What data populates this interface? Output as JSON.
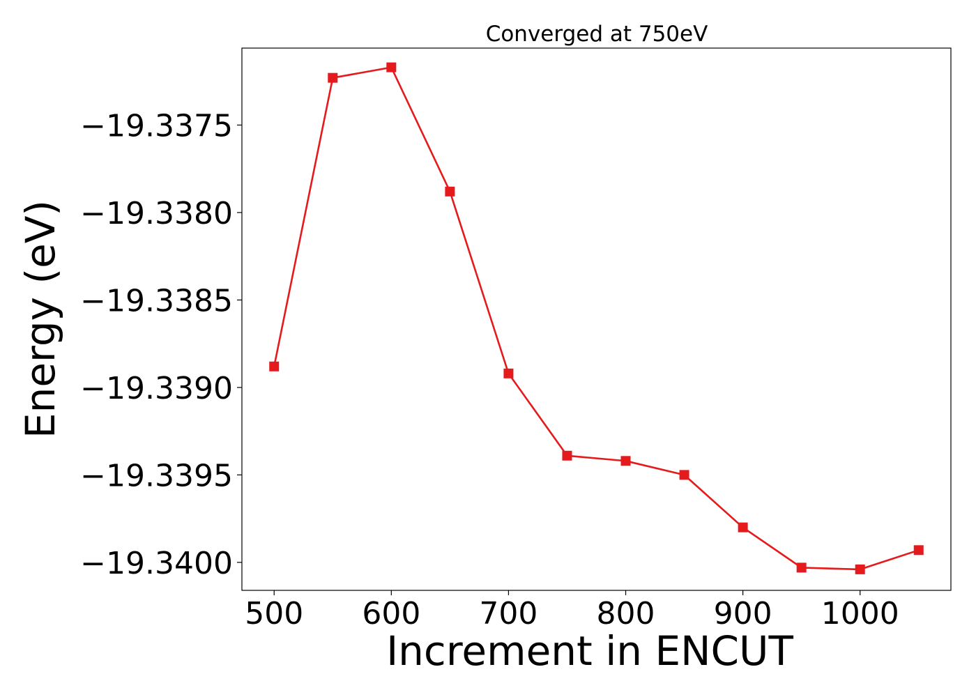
{
  "chart_data": {
    "type": "line",
    "title": "Converged at 750eV",
    "xlabel": "Increment in ENCUT",
    "ylabel": "Energy (eV)",
    "xlim": [
      472.5,
      1077.5
    ],
    "ylim": [
      -19.34016,
      -19.33706
    ],
    "xticks": [
      500,
      600,
      700,
      800,
      900,
      1000
    ],
    "xtick_labels": [
      "500",
      "600",
      "700",
      "800",
      "900",
      "1000"
    ],
    "yticks": [
      -19.3375,
      -19.338,
      -19.3385,
      -19.339,
      -19.3395,
      -19.34
    ],
    "ytick_labels": [
      "−19.3375",
      "−19.3380",
      "−19.3385",
      "−19.3390",
      "−19.3395",
      "−19.3400"
    ],
    "grid": false,
    "marker": "square",
    "line_color": "#e41a1c",
    "series": [
      {
        "x": [
          500,
          550,
          600,
          650,
          700,
          750,
          800,
          850,
          900,
          950,
          1000,
          1050
        ],
        "values": [
          -19.33888,
          -19.33723,
          -19.33717,
          -19.33788,
          -19.33892,
          -19.33939,
          -19.33942,
          -19.3395,
          -19.3398,
          -19.34003,
          -19.34004,
          -19.33993
        ]
      }
    ]
  }
}
